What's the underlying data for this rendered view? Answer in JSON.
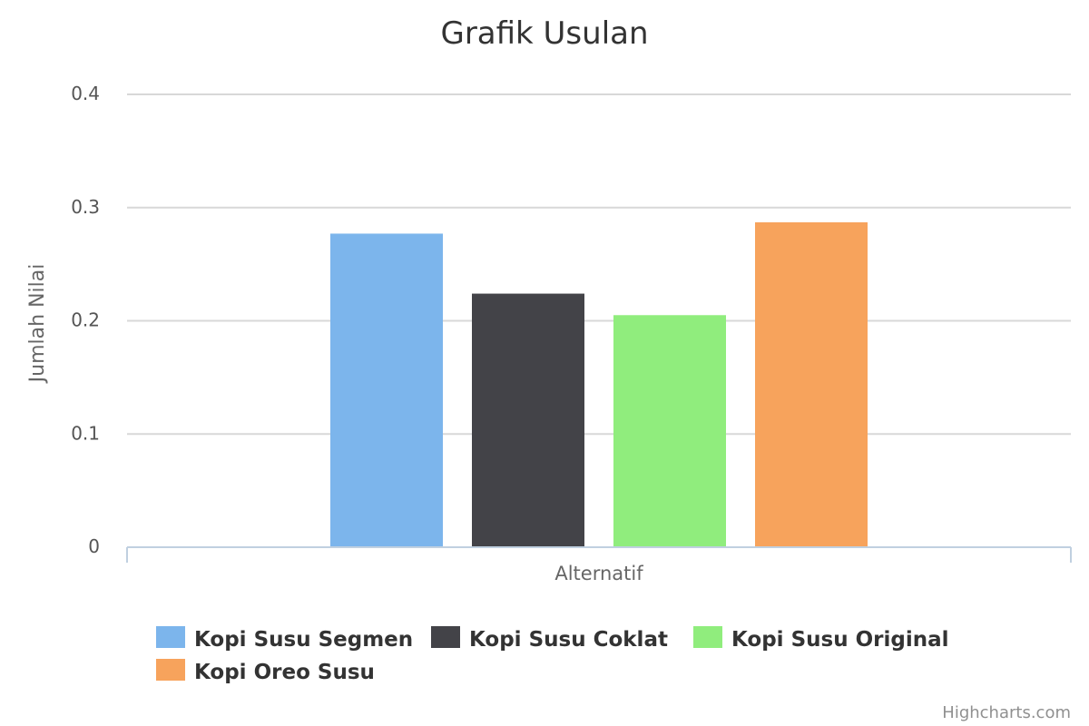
{
  "chart_data": {
    "type": "bar",
    "title": "Grafik Usulan",
    "xlabel": "Alternatif",
    "ylabel": "Jumlah Nilai",
    "ylim": [
      0,
      0.4
    ],
    "yticks": [
      "0",
      "0.1",
      "0.2",
      "0.3",
      "0.4"
    ],
    "grid": true,
    "legend_position": "bottom",
    "series": [
      {
        "name": "Kopi Susu Segmen",
        "value": 0.277,
        "color": "#7cb5ec"
      },
      {
        "name": "Kopi Susu Coklat",
        "value": 0.224,
        "color": "#434348"
      },
      {
        "name": "Kopi Susu Original",
        "value": 0.205,
        "color": "#90ed7d"
      },
      {
        "name": "Kopi Oreo Susu",
        "value": 0.287,
        "color": "#f7a35c"
      }
    ]
  },
  "credits": "Highcharts.com"
}
